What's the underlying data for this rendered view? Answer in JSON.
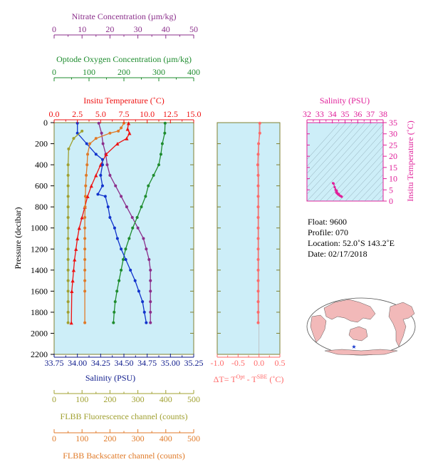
{
  "colors": {
    "nitrate": "#8b2f8b",
    "oxygen": "#1e8c2e",
    "temperature": "#ee1111",
    "salinity_profile": "#1133cc",
    "salinity_axis": "#0d1a8c",
    "fluorescence": "#a0a030",
    "backscatter": "#e07a28",
    "delta": "#ff6a6a",
    "ts_axis": "#e0209a",
    "panel_bg": "#cdeef8",
    "frame": "#808030"
  },
  "axes": {
    "nitrate": {
      "title": "Nitrate Concentration (µm/kg)",
      "ticks": [
        "0",
        "10",
        "20",
        "30",
        "40",
        "50"
      ]
    },
    "oxygen": {
      "title": "Optode Oxygen Concentration (µm/kg)",
      "ticks": [
        "0",
        "100",
        "200",
        "300",
        "400"
      ]
    },
    "temperature": {
      "title": "Insitu Temperature (˚C)",
      "ticks": [
        "0.0",
        "2.5",
        "5.0",
        "7.5",
        "10.0",
        "12.5",
        "15.0"
      ]
    },
    "pressure": {
      "title": "Pressure (decibar)",
      "ticks": [
        "0",
        "200",
        "400",
        "600",
        "800",
        "1000",
        "1200",
        "1400",
        "1600",
        "1800",
        "2000",
        "2200"
      ]
    },
    "salinity": {
      "title": "Salinity (PSU)",
      "ticks": [
        "33.75",
        "34.00",
        "34.25",
        "34.50",
        "34.75",
        "35.00",
        "35.25"
      ]
    },
    "delta": {
      "title_prefix": "ΔT= T",
      "sup1": "Opt",
      "mid": " - T",
      "sup2": "SBE",
      "suffix": " (˚C)",
      "ticks": [
        "-1.0",
        "-0.5",
        "0.0",
        "0.5"
      ]
    },
    "fluorescence": {
      "title": "FLBB Fluorescence channel (counts)",
      "ticks": [
        "0",
        "100",
        "200",
        "300",
        "400",
        "500"
      ]
    },
    "backscatter": {
      "title": "FLBB Backscatter channel (counts)",
      "ticks": [
        "0",
        "100",
        "200",
        "300",
        "400",
        "500"
      ]
    },
    "ts_salinity": {
      "title": "Salinity (PSU)",
      "ticks": [
        "32",
        "33",
        "34",
        "35",
        "36",
        "37",
        "38"
      ]
    },
    "ts_temperature": {
      "title": "Insitu Temperature (˚C)",
      "ticks": [
        "0",
        "5",
        "10",
        "15",
        "20",
        "25",
        "30",
        "35"
      ]
    }
  },
  "info": {
    "float": "Float:  9600",
    "profile": "Profile:  070",
    "location": "Location:  52.0˚S  143.2˚E",
    "date": "Date:  02/17/2018"
  },
  "chart_data": [
    {
      "type": "line",
      "name": "Nitrate",
      "xlim": [
        0,
        50
      ],
      "ylim": [
        2200,
        0
      ],
      "x": [
        16,
        17,
        17.5,
        18.5,
        19,
        20,
        22,
        24,
        26,
        28,
        30,
        32,
        33,
        34,
        34.5,
        34.5,
        34.5,
        34.5,
        34.5,
        34.5
      ],
      "y": [
        5,
        100,
        200,
        300,
        400,
        500,
        600,
        700,
        800,
        900,
        1000,
        1100,
        1200,
        1300,
        1400,
        1500,
        1600,
        1700,
        1800,
        1900
      ]
    },
    {
      "type": "line",
      "name": "Oxygen",
      "xlim": [
        0,
        400
      ],
      "ylim": [
        2200,
        0
      ],
      "x": [
        318,
        317,
        310,
        306,
        300,
        285,
        270,
        262,
        250,
        238,
        225,
        215,
        205,
        198,
        192,
        186,
        180,
        175,
        172,
        170
      ],
      "y": [
        5,
        100,
        200,
        300,
        400,
        500,
        600,
        700,
        800,
        900,
        1000,
        1100,
        1200,
        1300,
        1400,
        1500,
        1600,
        1700,
        1800,
        1900
      ]
    },
    {
      "type": "line",
      "name": "Temperature",
      "xlim": [
        0,
        15
      ],
      "ylim": [
        2200,
        0
      ],
      "x": [
        8.0,
        7.9,
        8.1,
        7.8,
        6.8,
        5.6,
        5.0,
        4.5,
        4.0,
        3.6,
        3.3,
        3.0,
        2.7,
        2.5,
        2.35,
        2.2,
        2.1,
        2.0,
        1.9,
        1.85
      ],
      "y": [
        5,
        60,
        100,
        150,
        200,
        300,
        400,
        500,
        600,
        700,
        800,
        900,
        1000,
        1100,
        1200,
        1300,
        1400,
        1500,
        1600,
        1900
      ]
    },
    {
      "type": "line",
      "name": "Salinity",
      "xlim": [
        33.75,
        35.25
      ],
      "ylim": [
        2200,
        0
      ],
      "x": [
        34.0,
        34.0,
        34.1,
        34.2,
        34.27,
        34.27,
        34.25,
        34.27,
        34.22,
        34.3,
        34.33,
        34.35,
        34.4,
        34.43,
        34.47,
        34.52,
        34.57,
        34.62,
        34.66,
        34.7,
        34.72,
        34.74
      ],
      "y": [
        5,
        100,
        200,
        300,
        350,
        400,
        500,
        600,
        680,
        700,
        800,
        900,
        1000,
        1100,
        1200,
        1300,
        1400,
        1500,
        1600,
        1700,
        1800,
        1900
      ]
    },
    {
      "type": "line",
      "name": "Fluorescence",
      "xlim": [
        0,
        500
      ],
      "ylim": [
        2200,
        0
      ],
      "x": [
        100,
        70,
        52,
        50,
        50,
        50,
        50,
        50,
        50,
        50,
        50,
        50,
        50,
        50,
        50,
        50,
        50,
        50,
        50
      ],
      "y": [
        80,
        150,
        250,
        400,
        500,
        600,
        700,
        800,
        900,
        1000,
        1100,
        1200,
        1300,
        1400,
        1500,
        1600,
        1700,
        1800,
        1900
      ]
    },
    {
      "type": "line",
      "name": "Backscatter",
      "xlim": [
        0,
        500
      ],
      "ylim": [
        2200,
        0
      ],
      "x": [
        250,
        240,
        230,
        200,
        150,
        128,
        120,
        118,
        115,
        113,
        112,
        111,
        110,
        110,
        110,
        110,
        110,
        110,
        110,
        110,
        110
      ],
      "y": [
        5,
        50,
        80,
        100,
        150,
        200,
        300,
        400,
        500,
        600,
        700,
        800,
        900,
        1000,
        1100,
        1200,
        1300,
        1400,
        1500,
        1600,
        1900
      ]
    },
    {
      "type": "line",
      "name": "Delta T",
      "xlim": [
        -1.0,
        0.5
      ],
      "ylim": [
        2200,
        0
      ],
      "x": [
        0.02,
        0.02,
        -0.01,
        -0.02,
        -0.03,
        -0.02,
        -0.02,
        -0.02,
        -0.02,
        -0.02,
        -0.02,
        -0.02,
        -0.02,
        -0.02,
        -0.02,
        -0.02,
        -0.02,
        -0.02,
        -0.02,
        -0.02
      ],
      "y": [
        5,
        100,
        200,
        300,
        400,
        500,
        600,
        700,
        800,
        900,
        1000,
        1100,
        1200,
        1300,
        1400,
        1500,
        1600,
        1700,
        1800,
        1900
      ]
    },
    {
      "type": "scatter",
      "name": "T-S",
      "xlim": [
        32,
        38
      ],
      "ylim": [
        0,
        35
      ],
      "x": [
        34.05,
        34.1,
        34.18,
        34.25,
        34.3,
        34.35,
        34.45,
        34.55,
        34.62,
        34.7,
        34.74,
        34.68,
        34.5,
        34.35
      ],
      "y": [
        8.0,
        7.8,
        6.2,
        5.0,
        4.0,
        3.5,
        3.0,
        2.6,
        2.3,
        2.1,
        1.9,
        2.2,
        3.2,
        4.6
      ]
    }
  ]
}
